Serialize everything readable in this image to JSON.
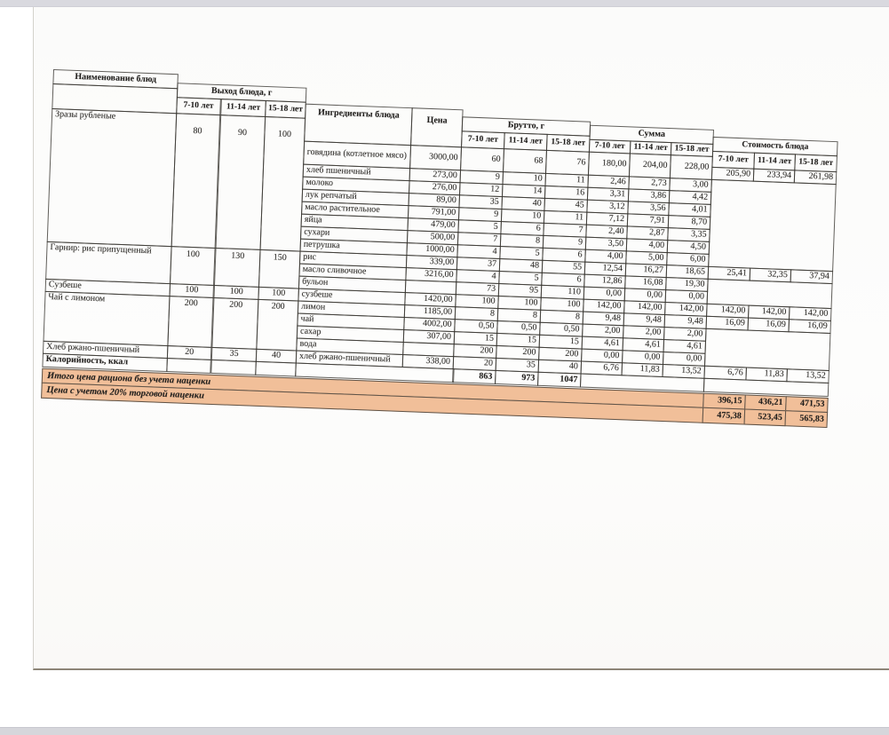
{
  "table": {
    "headers": {
      "name": "Наименование блюд",
      "output": "Выход блюда, г",
      "ingredients": "Ингредиенты блюда",
      "price": "Цена",
      "brutto": "Брутто, г",
      "sum": "Сумма",
      "dish_cost": "Стоимость блюда",
      "age_groups": [
        "7-10 лет",
        "11-14 лет",
        "15-18 лет"
      ]
    },
    "dishes": [
      {
        "name": "Зразы рубленые",
        "output": [
          "80",
          "90",
          "100"
        ],
        "cost": [
          "205,90",
          "233,94",
          "261,98"
        ]
      },
      {
        "name": "Гарнир: рис припущенный",
        "output": [
          "100",
          "130",
          "150"
        ],
        "cost": [
          "25,41",
          "32,35",
          "37,94"
        ]
      },
      {
        "name": "Сузбеше",
        "output": [
          "100",
          "100",
          "100"
        ],
        "cost": [
          "142,00",
          "142,00",
          "142,00"
        ]
      },
      {
        "name": "Чай с лимоном",
        "output": [
          "200",
          "200",
          "200"
        ],
        "cost": [
          "16,09",
          "16,09",
          "16,09"
        ]
      },
      {
        "name": "Хлеб ржано-пшеничный",
        "output": [
          "20",
          "35",
          "40"
        ],
        "cost": [
          "6,76",
          "11,83",
          "13,52"
        ]
      },
      {
        "name": "Калорийность, ккал",
        "output": [
          "",
          "",
          ""
        ],
        "cost": [
          "",
          "",
          ""
        ]
      }
    ],
    "ingredients": [
      {
        "name": "говядина (котлетное мясо)",
        "price": "3000,00",
        "brutto": [
          "60",
          "68",
          "76"
        ],
        "sum": [
          "180,00",
          "204,00",
          "228,00"
        ]
      },
      {
        "name": "хлеб пшеничный",
        "price": "273,00",
        "brutto": [
          "9",
          "10",
          "11"
        ],
        "sum": [
          "2,46",
          "2,73",
          "3,00"
        ]
      },
      {
        "name": "молоко",
        "price": "276,00",
        "brutto": [
          "12",
          "14",
          "16"
        ],
        "sum": [
          "3,31",
          "3,86",
          "4,42"
        ]
      },
      {
        "name": "лук репчатый",
        "price": "89,00",
        "brutto": [
          "35",
          "40",
          "45"
        ],
        "sum": [
          "3,12",
          "3,56",
          "4,01"
        ]
      },
      {
        "name": "масло растительное",
        "price": "791,00",
        "brutto": [
          "9",
          "10",
          "11"
        ],
        "sum": [
          "7,12",
          "7,91",
          "8,70"
        ]
      },
      {
        "name": "яйца",
        "price": "479,00",
        "brutto": [
          "5",
          "6",
          "7"
        ],
        "sum": [
          "2,40",
          "2,87",
          "3,35"
        ]
      },
      {
        "name": "сухари",
        "price": "500,00",
        "brutto": [
          "7",
          "8",
          "9"
        ],
        "sum": [
          "3,50",
          "4,00",
          "4,50"
        ]
      },
      {
        "name": "петрушка",
        "price": "1000,00",
        "brutto": [
          "4",
          "5",
          "6"
        ],
        "sum": [
          "4,00",
          "5,00",
          "6,00"
        ]
      },
      {
        "name": "рис",
        "price": "339,00",
        "brutto": [
          "37",
          "48",
          "55"
        ],
        "sum": [
          "12,54",
          "16,27",
          "18,65"
        ]
      },
      {
        "name": "масло сливочное",
        "price": "3216,00",
        "brutto": [
          "4",
          "5",
          "6"
        ],
        "sum": [
          "12,86",
          "16,08",
          "19,30"
        ]
      },
      {
        "name": "бульон",
        "price": "",
        "brutto": [
          "73",
          "95",
          "110"
        ],
        "sum": [
          "0,00",
          "0,00",
          "0,00"
        ]
      },
      {
        "name": "сузбеше",
        "price": "1420,00",
        "brutto": [
          "100",
          "100",
          "100"
        ],
        "sum": [
          "142,00",
          "142,00",
          "142,00"
        ]
      },
      {
        "name": "лимон",
        "price": "1185,00",
        "brutto": [
          "8",
          "8",
          "8"
        ],
        "sum": [
          "9,48",
          "9,48",
          "9,48"
        ]
      },
      {
        "name": "чай",
        "price": "4002,00",
        "brutto": [
          "0,50",
          "0,50",
          "0,50"
        ],
        "sum": [
          "2,00",
          "2,00",
          "2,00"
        ]
      },
      {
        "name": "сахар",
        "price": "307,00",
        "brutto": [
          "15",
          "15",
          "15"
        ],
        "sum": [
          "4,61",
          "4,61",
          "4,61"
        ]
      },
      {
        "name": "вода",
        "price": "",
        "brutto": [
          "200",
          "200",
          "200"
        ],
        "sum": [
          "0,00",
          "0,00",
          "0,00"
        ]
      },
      {
        "name": "хлеб ржано-пшеничный",
        "price": "338,00",
        "brutto": [
          "20",
          "35",
          "40"
        ],
        "sum": [
          "6,76",
          "11,83",
          "13,52"
        ]
      }
    ],
    "calories": [
      "863",
      "973",
      "1047"
    ],
    "totals": [
      {
        "label": "Итого цена рациона без учета наценки",
        "values": [
          "396,15",
          "436,21",
          "471,53"
        ]
      },
      {
        "label": "Цена с учетом 20% торговой наценки",
        "values": [
          "475,38",
          "523,45",
          "565,83"
        ]
      }
    ],
    "accent_color": "#f1bf99"
  }
}
